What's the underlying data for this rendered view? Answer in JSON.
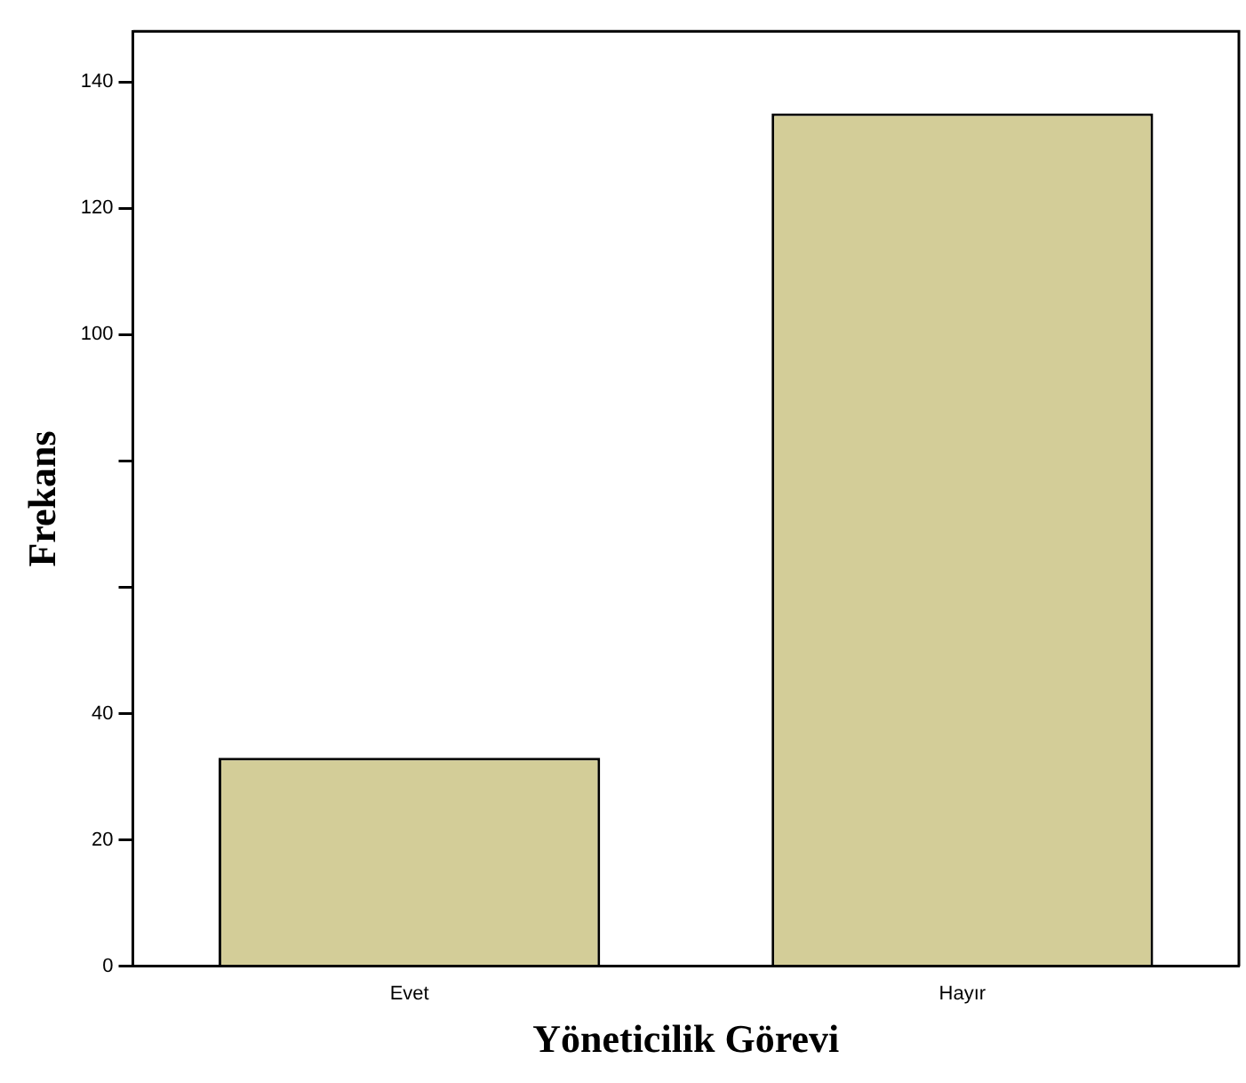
{
  "chart_data": {
    "type": "bar",
    "xlabel": "Yöneticilik Görevi",
    "ylabel": "Frekans",
    "categories": [
      "Evet",
      "Hayır"
    ],
    "values": [
      33,
      135
    ],
    "color": "#d3cd98",
    "ylim": [
      0,
      148
    ],
    "yticks": [
      0,
      20,
      40,
      {
        "value": 60,
        "label": null
      },
      {
        "value": 80,
        "label": null
      },
      100,
      120,
      140
    ],
    "grid": false,
    "legend": false
  }
}
